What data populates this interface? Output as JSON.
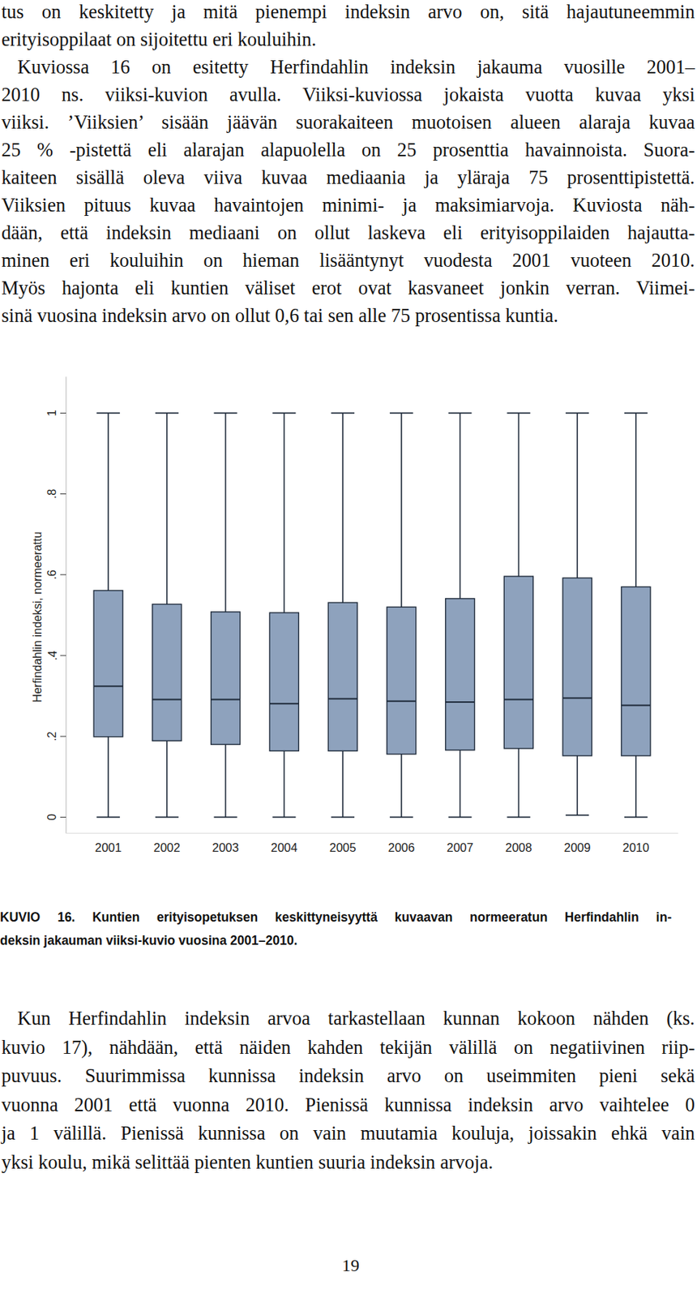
{
  "text_before": [
    {
      "lines": [
        "tus on keskitetty ja mitä pienempi indeksin arvo on, sitä hajautuneemmin",
        "erityisoppilaat on sijoitettu eri kouluihin."
      ]
    },
    {
      "lines": [
        "Kuviossa 16 on esitetty Herfindahlin indeksin jakauma vuosille 2001–",
        "2010 ns. viiksi-kuvion avulla. Viiksi-kuviossa jokaista vuotta kuvaa yksi",
        "viiksi. ’Viiksien’ sisään jäävän suorakaiteen muotoisen alueen alaraja kuvaa",
        "25 % -pistettä eli alarajan alapuolella on 25 prosenttia havainnoista. Suora-",
        "kaiteen sisällä oleva viiva kuvaa mediaania ja yläraja 75 prosenttipistettä.",
        "Viiksien pituus kuvaa havaintojen minimi- ja maksimiarvoja. Kuviosta näh-",
        "dään, että indeksin mediaani on ollut laskeva eli erityisoppilaiden hajautta-",
        "minen eri kouluihin on hieman lisääntynyt vuodesta 2001 vuoteen 2010.",
        "Myös hajonta eli kuntien väliset erot ovat kasvaneet jonkin verran. Viimei-",
        "sinä vuosina indeksin arvo on ollut 0,6 tai sen alle 75 prosentissa kuntia."
      ]
    }
  ],
  "chart_data": {
    "type": "box",
    "y_label": "Herfindahlin indeksi, normeerattu",
    "categories": [
      "2001",
      "2002",
      "2003",
      "2004",
      "2005",
      "2006",
      "2007",
      "2008",
      "2009",
      "2010"
    ],
    "min": [
      0,
      0,
      0,
      0,
      0,
      0,
      0,
      0,
      0.005,
      0
    ],
    "q1": [
      0.199,
      0.189,
      0.18,
      0.164,
      0.164,
      0.156,
      0.166,
      0.17,
      0.152,
      0.152
    ],
    "median": [
      0.324,
      0.291,
      0.291,
      0.281,
      0.293,
      0.287,
      0.285,
      0.291,
      0.295,
      0.277
    ],
    "q3": [
      0.561,
      0.527,
      0.508,
      0.506,
      0.531,
      0.52,
      0.541,
      0.596,
      0.592,
      0.57
    ],
    "max": [
      1,
      1,
      1,
      1,
      1,
      1,
      1,
      1,
      1,
      1
    ],
    "color": "#8ea2bd",
    "ylim": [
      -0.04,
      1.09
    ],
    "yticks": [
      0,
      {
        "value": 0.2,
        "label": ".2"
      },
      {
        "value": 0.4,
        "label": ".4"
      },
      {
        "value": 0.6,
        "label": ".6"
      },
      {
        "value": 0.8,
        "label": ".8"
      },
      1
    ],
    "grid": false
  },
  "caption": {
    "lines": [
      "KUVIO 16. Kuntien erityisopetuksen keskittyneisyyttä kuvaavan normeeratun Herfindahlin in-",
      "deksin jakauman viiksi-kuvio vuosina 2001–2010."
    ]
  },
  "text_after": [
    {
      "lines": [
        "Kun Herfindahlin indeksin arvoa tarkastellaan kunnan kokoon nähden (ks.",
        "kuvio 17), nähdään, että näiden kahden tekijän välillä on negatiivinen riip-",
        "puvuus. Suurimmissa kunnissa indeksin arvo on useimmiten pieni sekä",
        "vuonna 2001 että vuonna 2010. Pienissä kunnissa indeksin arvo vaihtelee 0",
        "ja 1 välillä. Pienissä kunnissa on vain muutamia kouluja, joissakin ehkä vain",
        "yksi koulu, mikä selittää pienten kuntien suuria indeksin arvoja."
      ]
    }
  ],
  "page_number": "19"
}
